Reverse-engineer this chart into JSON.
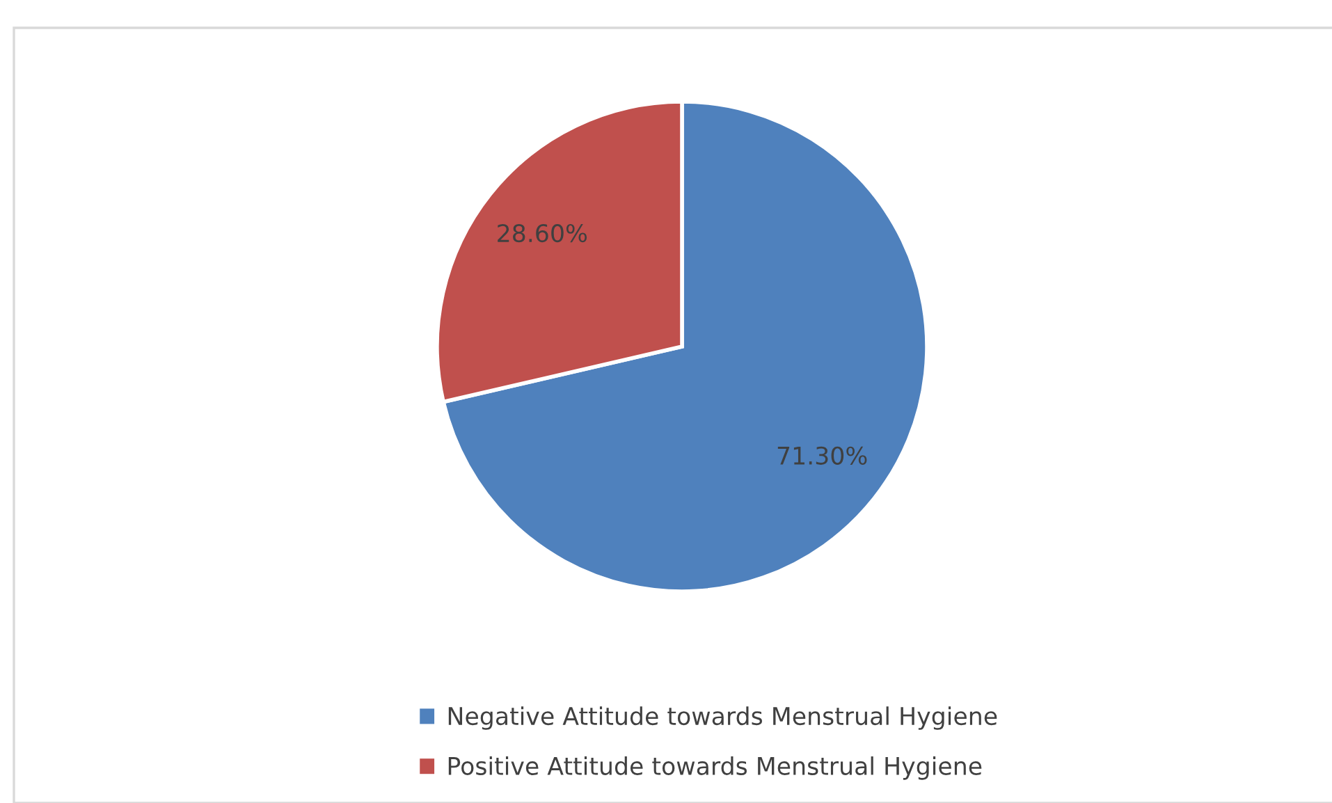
{
  "chart_data": {
    "type": "pie",
    "categories": [
      "Negative Attitude towards Menstrual Hygiene",
      "Positive Attitude towards Menstrual Hygiene"
    ],
    "values": [
      71.3,
      28.6
    ],
    "colors": [
      "#4f81bd",
      "#c0504d"
    ],
    "value_labels": [
      "71.30%",
      "28.60%"
    ],
    "legend": "bottom"
  }
}
